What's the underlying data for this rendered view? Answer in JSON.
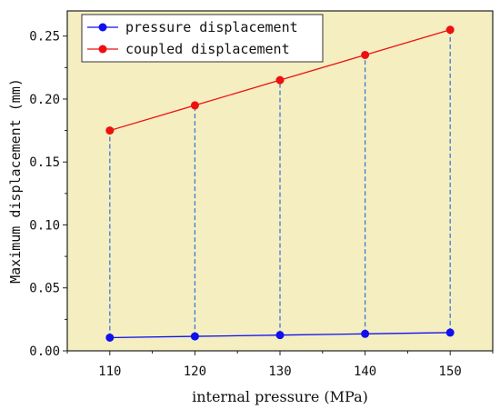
{
  "chart_data": {
    "type": "line",
    "title": "",
    "xlabel": "internal pressure (MPa)",
    "ylabel": "Maximum displacement (mm)",
    "x": [
      110,
      120,
      130,
      140,
      150
    ],
    "xlim": [
      105,
      155
    ],
    "ylim": [
      0,
      0.27
    ],
    "xticks": [
      "110",
      "120",
      "130",
      "140",
      "150"
    ],
    "yticks": [
      "0.00",
      "0.05",
      "0.10",
      "0.15",
      "0.20",
      "0.25"
    ],
    "ytick_values": [
      0,
      0.05,
      0.1,
      0.15,
      0.2,
      0.25
    ],
    "grid": false,
    "legend_position": "top-left",
    "background_color": "#f4eec0",
    "series": [
      {
        "name": "pressure displacement",
        "color": "#1010ee",
        "values": [
          0.0105,
          0.0115,
          0.0125,
          0.0135,
          0.0145
        ]
      },
      {
        "name": "coupled displacement",
        "color": "#ee1010",
        "values": [
          0.175,
          0.195,
          0.215,
          0.235,
          0.255
        ]
      }
    ],
    "connector_color": "#3a7bd5"
  }
}
